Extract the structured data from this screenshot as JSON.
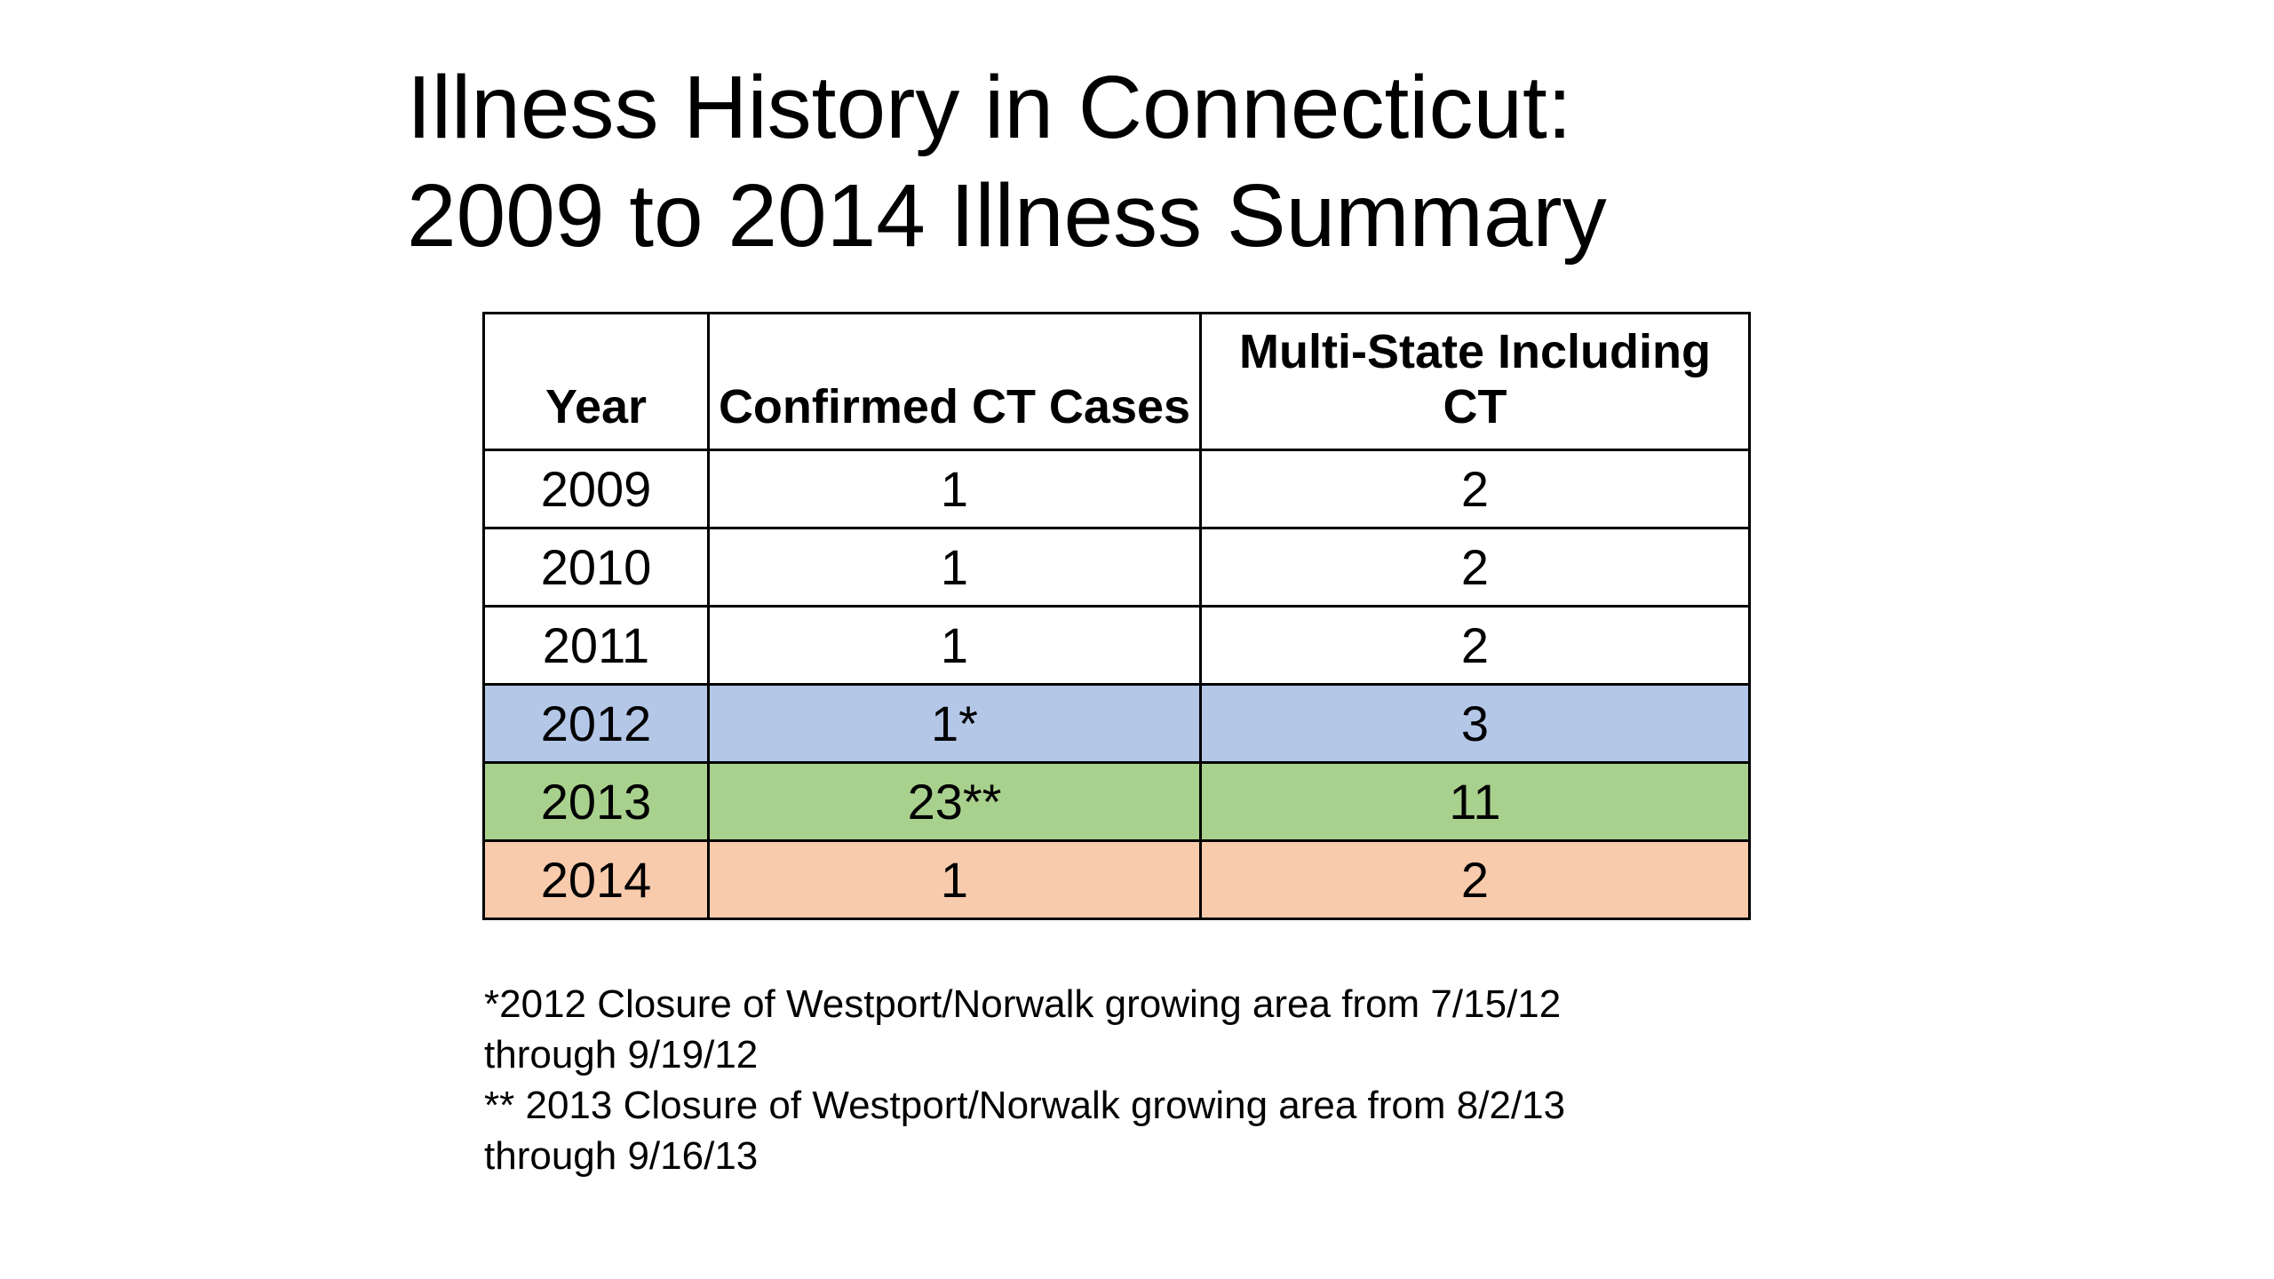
{
  "slide": {
    "title": {
      "lines": [
        "Illness History in Connecticut:",
        "2009 to 2014 Illness Summary"
      ]
    },
    "table": {
      "header": {
        "year": "Year",
        "confirmed": "Confirmed CT Cases",
        "multi_state_lines": [
          "Multi-State Including",
          "CT"
        ]
      },
      "rows": [
        {
          "year": "2009",
          "confirmed": "1",
          "multi_state": "2",
          "fill": "#FFFFFF"
        },
        {
          "year": "2010",
          "confirmed": "1",
          "multi_state": "2",
          "fill": "#FFFFFF"
        },
        {
          "year": "2011",
          "confirmed": "1",
          "multi_state": "2",
          "fill": "#FFFFFF"
        },
        {
          "year": "2012",
          "confirmed": "1*",
          "multi_state": "3",
          "fill": "#B4C7E7"
        },
        {
          "year": "2013",
          "confirmed": "23**",
          "multi_state": "11",
          "fill": "#A9D18E"
        },
        {
          "year": "2014",
          "confirmed": "1",
          "multi_state": "2",
          "fill": "#F8CBAD"
        }
      ]
    },
    "footnotes": [
      {
        "lines": [
          "*2012 Closure of Westport/Norwalk growing area from 7/15/12",
          "through 9/19/12"
        ]
      },
      {
        "lines": [
          "** 2013 Closure of Westport/Norwalk growing area from 8/2/13",
          "through 9/16/13"
        ]
      }
    ],
    "colors": {
      "background": "#FFFFFF",
      "text": "#000000",
      "table_border": "#000000",
      "highlight_2012_row": "#B4C7E7",
      "highlight_2013_row": "#A9D18E",
      "highlight_2014_row": "#F8CBAD"
    }
  },
  "chart_data": {
    "type": "table",
    "title": "Illness History in Connecticut: 2009 to 2014 Illness Summary",
    "columns": [
      "Year",
      "Confirmed CT Cases",
      "Multi-State Including CT"
    ],
    "rows": [
      [
        "2009",
        "1",
        "2"
      ],
      [
        "2010",
        "1",
        "2"
      ],
      [
        "2011",
        "1",
        "2"
      ],
      [
        "2012",
        "1*",
        "3"
      ],
      [
        "2013",
        "23**",
        "11"
      ],
      [
        "2014",
        "1",
        "2"
      ]
    ],
    "highlighted_rows": [
      "2012",
      "2013",
      "2014"
    ],
    "notes": [
      "*2012 Closure of Westport/Norwalk growing area from 7/15/12 through 9/19/12",
      "** 2013 Closure of Westport/Norwalk growing area from 8/2/13 through 9/16/13"
    ]
  }
}
